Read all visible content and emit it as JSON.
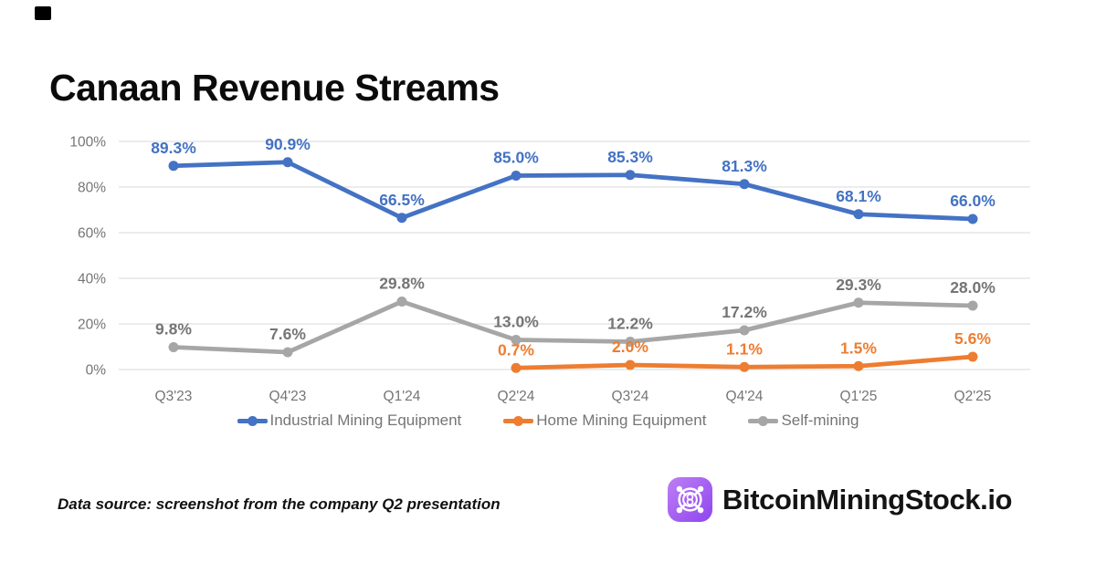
{
  "title": "Canaan Revenue Streams",
  "footer": {
    "source_note": "Data source: screenshot from the company Q2 presentation",
    "brand": "BitcoinMiningStock.io"
  },
  "colors": {
    "industrial_blue": "#4472C4",
    "home_orange": "#ED7D31",
    "self_mining_gray": "#A6A6A6",
    "gray_label": "#757575",
    "axis_text": "#757575",
    "gridline": "#dadada",
    "title_text": "#0b0b0b",
    "brand_purple_light": "#bd7ff5",
    "brand_purple_dark": "#8f45ef"
  },
  "chart_data": {
    "type": "line",
    "title": "Canaan Revenue Streams",
    "categories": [
      "Q3'23",
      "Q4'23",
      "Q1'24",
      "Q2'24",
      "Q3'24",
      "Q4'24",
      "Q1'25",
      "Q2'25"
    ],
    "series": [
      {
        "name": "Industrial Mining Equipment",
        "color": "#4472C4",
        "label_color": "#4472C4",
        "values": [
          89.3,
          90.9,
          66.5,
          85.0,
          85.3,
          81.3,
          68.1,
          66.0
        ]
      },
      {
        "name": "Home Mining Equipment",
        "color": "#ED7D31",
        "label_color": "#ED7D31",
        "values": [
          null,
          null,
          null,
          0.7,
          2.0,
          1.1,
          1.5,
          5.6
        ]
      },
      {
        "name": "Self-mining",
        "color": "#A6A6A6",
        "label_color": "#757575",
        "values": [
          9.8,
          7.6,
          29.8,
          13.0,
          12.2,
          17.2,
          29.3,
          28.0
        ]
      }
    ],
    "y_axis": {
      "tick_labels": [
        "100%",
        "80%",
        "60%",
        "40%",
        "20%",
        "0%"
      ],
      "tick_values": [
        100,
        80,
        60,
        40,
        20,
        0
      ],
      "min": 0,
      "max": 100
    },
    "grid": true,
    "data_labels": true,
    "data_label_format": "0.0%",
    "legend_position": "bottom"
  }
}
